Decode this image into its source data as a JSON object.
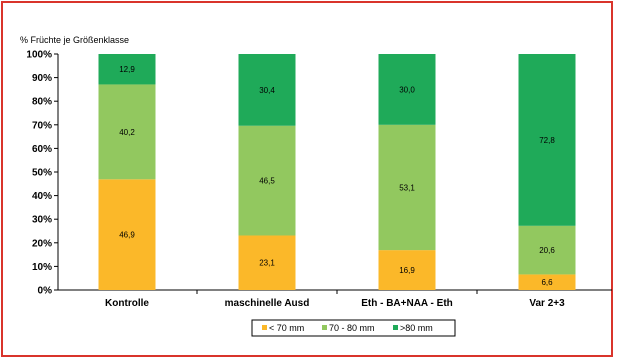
{
  "chart_data": {
    "type": "bar",
    "stacked": true,
    "percent": true,
    "title": "% Früchte je Größenklasse",
    "categories": [
      "Kontrolle",
      "maschinelle Ausd",
      "Eth - BA+NAA - Eth",
      "Var 2+3"
    ],
    "series": [
      {
        "name": "< 70 mm",
        "color": "#fbb829",
        "values": [
          46.9,
          23.1,
          16.9,
          6.6
        ],
        "labels": [
          "46,9",
          "23,1",
          "16,9",
          "6,6"
        ]
      },
      {
        "name": "70 - 80 mm",
        "color": "#92c85f",
        "values": [
          40.2,
          46.5,
          53.1,
          20.6
        ],
        "labels": [
          "40,2",
          "46,5",
          "53,1",
          "20,6"
        ]
      },
      {
        "name": ">80 mm",
        "color": "#1faa59",
        "values": [
          12.9,
          30.4,
          30.0,
          72.8
        ],
        "labels": [
          "12,9",
          "30,4",
          "30,0",
          "72,8"
        ]
      }
    ],
    "yticks": [
      "0%",
      "10%",
      "20%",
      "30%",
      "40%",
      "50%",
      "60%",
      "70%",
      "80%",
      "90%",
      "100%"
    ],
    "ylim": [
      0,
      100
    ],
    "grid": false,
    "legend_position": "bottom"
  }
}
